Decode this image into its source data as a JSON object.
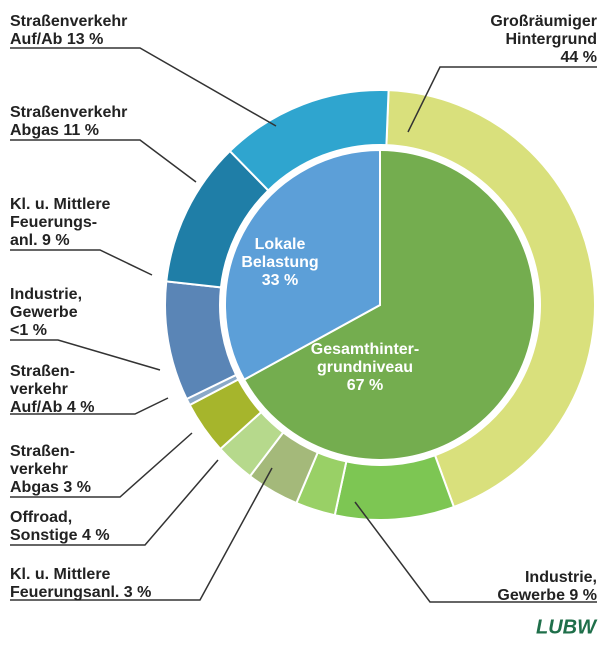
{
  "chart_data": {
    "type": "donut",
    "inner": {
      "labels": [
        [
          "Gesamthinter-",
          "grundniveau",
          "67 %"
        ],
        [
          "Lokale",
          "Belastung",
          "33 %"
        ]
      ],
      "values": [
        67,
        33
      ],
      "colors": [
        "#74ad4f",
        "#5c9fd8"
      ]
    },
    "outer": {
      "labels": [
        [
          "Großräumiger",
          "Hintergrund",
          "44 %"
        ],
        [
          "Industrie,",
          "Gewerbe 9 %"
        ],
        [
          "Kl. u. Mittlere",
          "Feuerungsanl. 3 %"
        ],
        [
          "Offroad,",
          "Sonstige 4 %"
        ],
        [
          "Straßen-",
          "verkehr",
          "Abgas 3 %"
        ],
        [
          "Straßen-",
          "verkehr",
          "Auf/Ab 4 %"
        ],
        [
          "Industrie,",
          "Gewerbe",
          "<1 %"
        ],
        [
          "Kl. u. Mittlere",
          "Feuerungs-",
          "anl. 9 %"
        ],
        [
          "Straßenverkehr",
          "Abgas 11 %"
        ],
        [
          "Straßenverkehr",
          "Auf/Ab 13 %"
        ]
      ],
      "values": [
        44,
        9,
        3,
        4,
        3,
        4,
        0.5,
        9,
        11,
        13
      ],
      "colors": [
        "#d9e07c",
        "#7dc653",
        "#99d066",
        "#a4b97a",
        "#b6d98c",
        "#a6b52c",
        "#8aa9c8",
        "#5a85b6",
        "#1f7ea7",
        "#2fa5cf"
      ]
    },
    "logo": "LUBW"
  }
}
